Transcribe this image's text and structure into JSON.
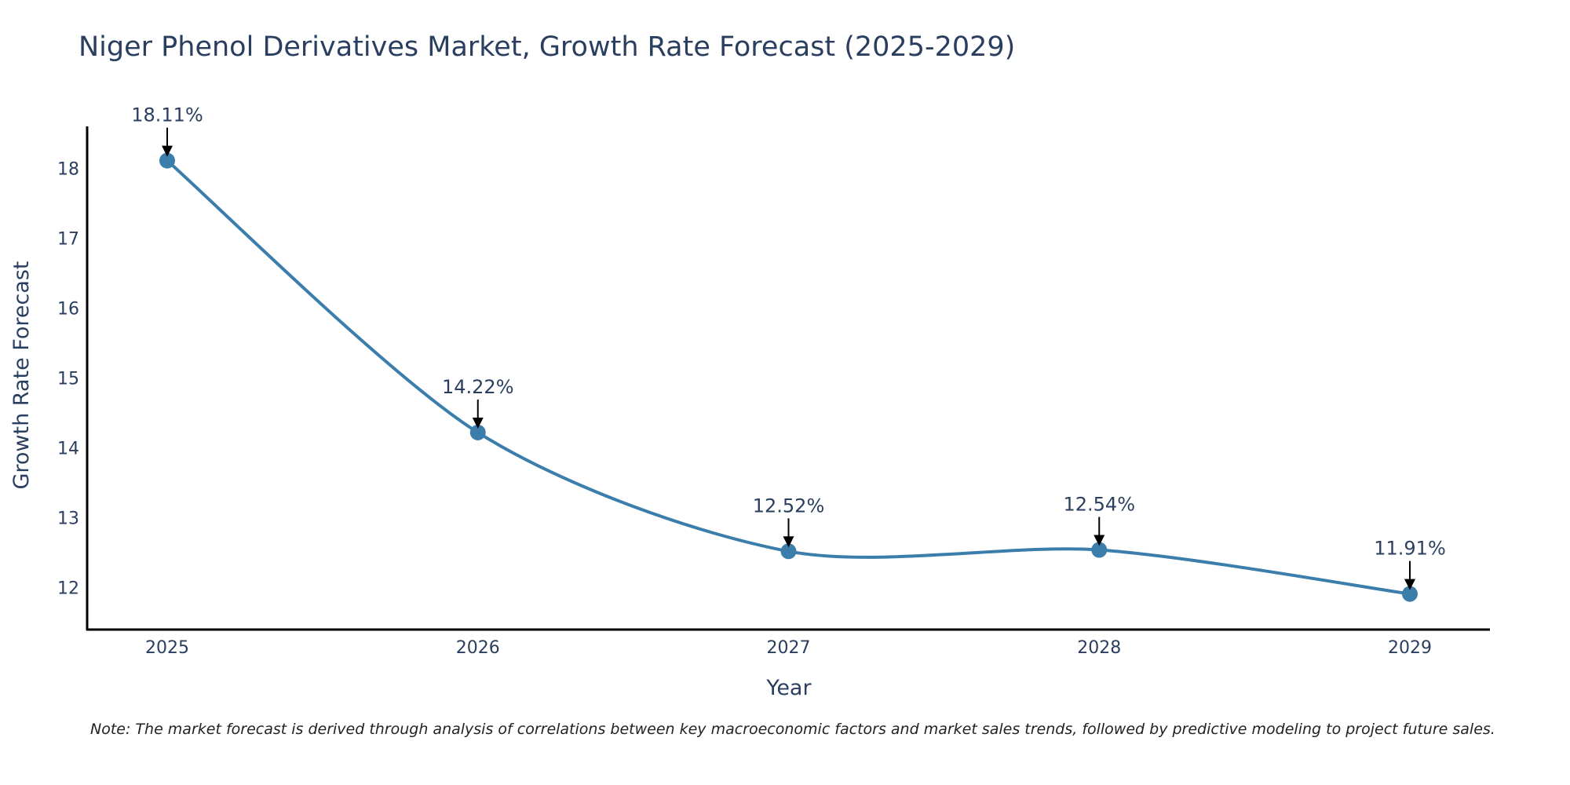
{
  "chart_data": {
    "type": "line",
    "title": "Niger Phenol Derivatives Market, Growth Rate Forecast (2025-2029)",
    "xlabel": "Year",
    "ylabel": "Growth Rate Forecast",
    "categories": [
      "2025",
      "2026",
      "2027",
      "2028",
      "2029"
    ],
    "series": [
      {
        "name": "Growth Rate Forecast",
        "values": [
          18.11,
          14.22,
          12.52,
          12.54,
          11.91
        ]
      }
    ],
    "data_labels": [
      "18.11%",
      "14.22%",
      "12.52%",
      "12.54%",
      "11.91%"
    ],
    "y_ticks": [
      12,
      13,
      14,
      15,
      16,
      17,
      18
    ],
    "ylim": [
      11.4,
      18.6
    ],
    "grid": false,
    "line_color": "#3b7dab",
    "marker_color": "#3b7dab",
    "note": "Note: The market forecast is derived through analysis of correlations between key macroeconomic factors and market sales trends, followed by predictive modeling to project future sales."
  }
}
